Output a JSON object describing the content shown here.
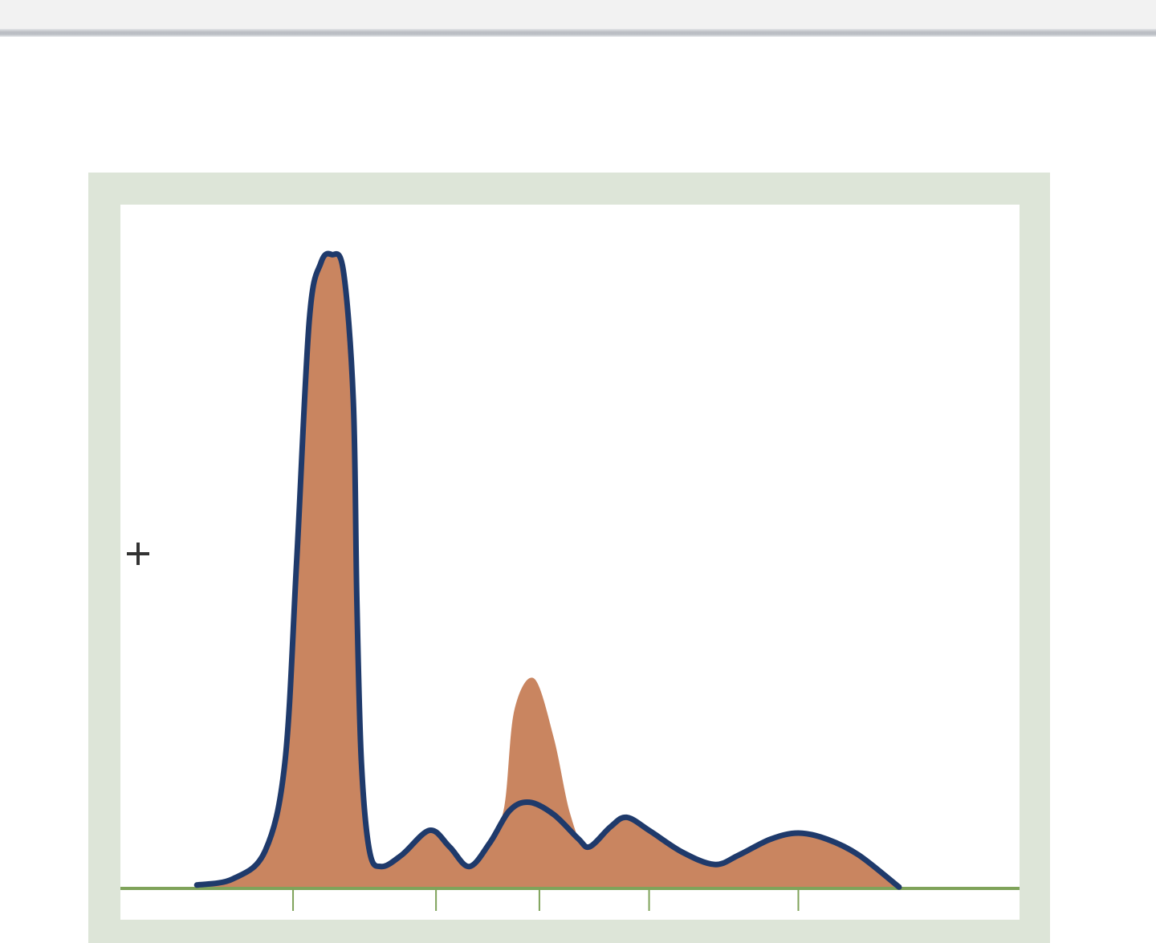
{
  "colors": {
    "frame": "#dde5d8",
    "fill": "#c98560",
    "line": "#1f3a6b",
    "axis": "#7fa35a"
  },
  "chart_data": {
    "type": "area",
    "title": "",
    "xlabel": "",
    "ylabel": "",
    "xlim": [
      0,
      10
    ],
    "ylim": [
      0,
      1
    ],
    "grid": false,
    "xticks": [
      1.92,
      3.51,
      4.66,
      5.88,
      7.54
    ],
    "series": [
      {
        "style": "filled-area",
        "color": "#c98560",
        "points": [
          [
            0.85,
            0.005
          ],
          [
            1.25,
            0.014
          ],
          [
            1.61,
            0.055
          ],
          [
            1.83,
            0.185
          ],
          [
            1.96,
            0.478
          ],
          [
            2.1,
            0.83
          ],
          [
            2.23,
            0.915
          ],
          [
            2.35,
            0.927
          ],
          [
            2.48,
            0.903
          ],
          [
            2.59,
            0.714
          ],
          [
            2.63,
            0.42
          ],
          [
            2.68,
            0.185
          ],
          [
            2.77,
            0.055
          ],
          [
            2.9,
            0.032
          ],
          [
            3.13,
            0.049
          ],
          [
            3.44,
            0.085
          ],
          [
            3.66,
            0.061
          ],
          [
            3.88,
            0.032
          ],
          [
            4.11,
            0.067
          ],
          [
            4.27,
            0.12
          ],
          [
            4.38,
            0.26
          ],
          [
            4.6,
            0.307
          ],
          [
            4.82,
            0.22
          ],
          [
            5.0,
            0.11
          ],
          [
            5.18,
            0.06
          ],
          [
            5.45,
            0.09
          ],
          [
            5.63,
            0.104
          ],
          [
            5.89,
            0.084
          ],
          [
            6.25,
            0.053
          ],
          [
            6.61,
            0.035
          ],
          [
            6.88,
            0.049
          ],
          [
            7.23,
            0.072
          ],
          [
            7.54,
            0.081
          ],
          [
            7.86,
            0.072
          ],
          [
            8.21,
            0.049
          ],
          [
            8.7,
            0.0
          ]
        ]
      },
      {
        "style": "line",
        "color": "#1f3a6b",
        "points": [
          [
            0.85,
            0.005
          ],
          [
            1.25,
            0.014
          ],
          [
            1.61,
            0.055
          ],
          [
            1.83,
            0.185
          ],
          [
            1.96,
            0.478
          ],
          [
            2.1,
            0.83
          ],
          [
            2.23,
            0.915
          ],
          [
            2.35,
            0.927
          ],
          [
            2.48,
            0.903
          ],
          [
            2.59,
            0.714
          ],
          [
            2.63,
            0.42
          ],
          [
            2.68,
            0.185
          ],
          [
            2.77,
            0.055
          ],
          [
            2.9,
            0.032
          ],
          [
            3.13,
            0.049
          ],
          [
            3.44,
            0.085
          ],
          [
            3.66,
            0.061
          ],
          [
            3.88,
            0.032
          ],
          [
            4.11,
            0.067
          ],
          [
            4.33,
            0.114
          ],
          [
            4.55,
            0.126
          ],
          [
            4.82,
            0.108
          ],
          [
            5.09,
            0.073
          ],
          [
            5.22,
            0.061
          ],
          [
            5.45,
            0.09
          ],
          [
            5.63,
            0.104
          ],
          [
            5.89,
            0.084
          ],
          [
            6.25,
            0.053
          ],
          [
            6.61,
            0.035
          ],
          [
            6.88,
            0.049
          ],
          [
            7.23,
            0.072
          ],
          [
            7.54,
            0.081
          ],
          [
            7.86,
            0.072
          ],
          [
            8.21,
            0.049
          ],
          [
            8.66,
            0.002
          ]
        ]
      }
    ]
  }
}
